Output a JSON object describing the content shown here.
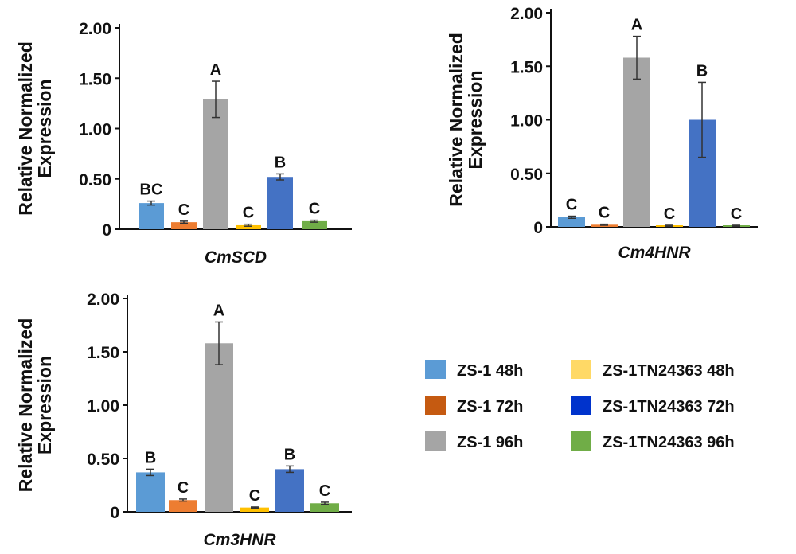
{
  "legend": [
    {
      "label": "ZS-1 48h",
      "color": "#5B9BD5"
    },
    {
      "label": "ZS-1 72h",
      "color": "#C55A11"
    },
    {
      "label": "ZS-1 96h",
      "color": "#A5A5A5"
    },
    {
      "label": "ZS-1TN24363 48h",
      "color": "#FFD966"
    },
    {
      "label": "ZS-1TN24363 72h",
      "color": "#0033CC"
    },
    {
      "label": "ZS-1TN24363 96h",
      "color": "#70AD47"
    }
  ],
  "chart_data": [
    {
      "type": "bar",
      "title": "CmSCD",
      "ylabel": "Relative Normalized Expression",
      "ylim": [
        0,
        2.0
      ],
      "yticks": [
        "0",
        "0.50",
        "1.00",
        "1.50",
        "2.00"
      ],
      "categories": [
        "ZS-1 48h",
        "ZS-1 72h",
        "ZS-1 96h",
        "ZS-1TN24363 48h",
        "ZS-1TN24363 72h",
        "ZS-1TN24363 96h"
      ],
      "values": [
        0.26,
        0.07,
        1.29,
        0.04,
        0.52,
        0.08
      ],
      "errors": [
        0.02,
        0.01,
        0.18,
        0.01,
        0.03,
        0.01
      ],
      "letters": [
        "BC",
        "C",
        "A",
        "C",
        "B",
        "C"
      ],
      "colors": [
        "#5B9BD5",
        "#ED7D31",
        "#A5A5A5",
        "#FFC000",
        "#4472C4",
        "#70AD47"
      ]
    },
    {
      "type": "bar",
      "title": "Cm4HNR",
      "ylabel": "Relative Normalized Expression",
      "ylim": [
        0,
        2.0
      ],
      "yticks": [
        "0",
        "0.50",
        "1.00",
        "1.50",
        "2.00"
      ],
      "categories": [
        "ZS-1 48h",
        "ZS-1 72h",
        "ZS-1 96h",
        "ZS-1TN24363 48h",
        "ZS-1TN24363 72h",
        "ZS-1TN24363 96h"
      ],
      "values": [
        0.09,
        0.02,
        1.58,
        0.01,
        1.0,
        0.01
      ],
      "errors": [
        0.01,
        0.005,
        0.2,
        0.005,
        0.35,
        0.005
      ],
      "letters": [
        "C",
        "C",
        "A",
        "C",
        "B",
        "C"
      ],
      "colors": [
        "#5B9BD5",
        "#ED7D31",
        "#A5A5A5",
        "#FFC000",
        "#4472C4",
        "#70AD47"
      ]
    },
    {
      "type": "bar",
      "title": "Cm3HNR",
      "ylabel": "Relative Normalized Expression",
      "ylim": [
        0,
        2.0
      ],
      "yticks": [
        "0",
        "0.50",
        "1.00",
        "1.50",
        "2.00"
      ],
      "categories": [
        "ZS-1 48h",
        "ZS-1 72h",
        "ZS-1 96h",
        "ZS-1TN24363 48h",
        "ZS-1TN24363 72h",
        "ZS-1TN24363 96h"
      ],
      "values": [
        0.37,
        0.11,
        1.58,
        0.04,
        0.4,
        0.08
      ],
      "errors": [
        0.03,
        0.01,
        0.2,
        0.005,
        0.03,
        0.01
      ],
      "letters": [
        "B",
        "C",
        "A",
        "C",
        "B",
        "C"
      ],
      "colors": [
        "#5B9BD5",
        "#ED7D31",
        "#A5A5A5",
        "#FFC000",
        "#4472C4",
        "#70AD47"
      ]
    }
  ]
}
